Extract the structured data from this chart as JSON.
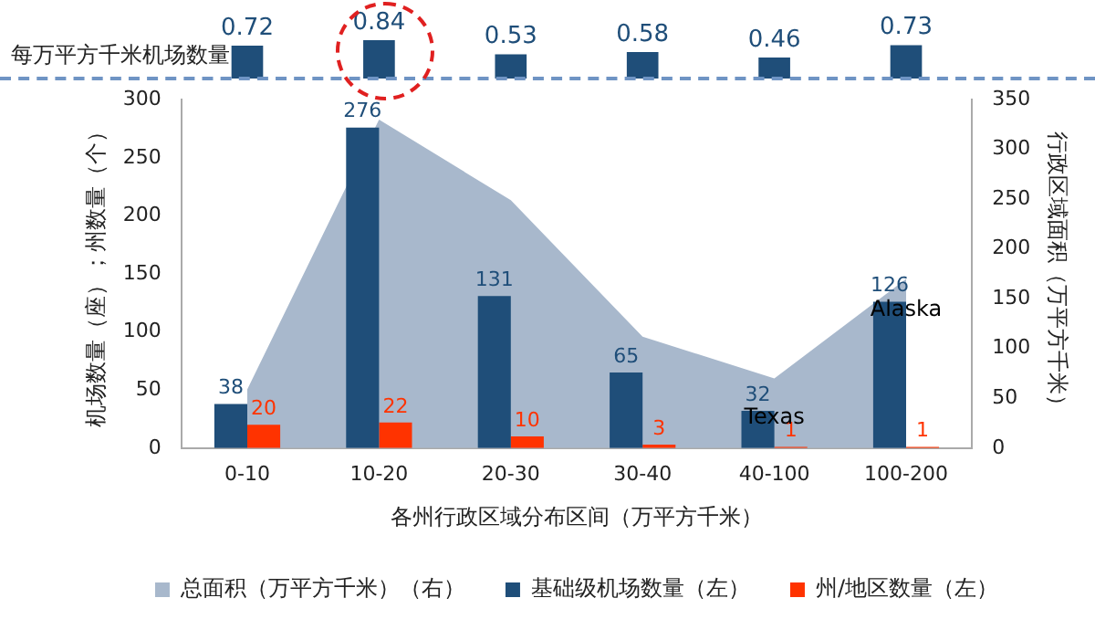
{
  "chart_data": [
    {
      "type": "bar",
      "ylabel": "每万平方千米机场数量",
      "categories": [
        null,
        null,
        null,
        null,
        null,
        null
      ],
      "values": [
        0.72,
        0.84,
        0.53,
        0.58,
        0.46,
        0.73
      ],
      "color": "#1f4e79",
      "data_labels": true,
      "tick_labels": false
    },
    {
      "type": "bar",
      "categories": [
        "0-10",
        "10-20",
        "20-30",
        "30-40",
        "40-100",
        "100-200"
      ],
      "xlabel": "各州行政区域分布区间（万平方千米）",
      "ylabel": "机场数量（座）；州数量（个）",
      "y2label": "行政区域面积（万平方千米）",
      "series": [
        {
          "name": "总面积（万平方千米）（右）",
          "type": "area",
          "axis": "y2",
          "color": "#a8b8cc",
          "values": [
            59,
            330,
            249,
            112,
            70,
            170
          ]
        },
        {
          "name": "基础级机场数量（左）",
          "type": "bar",
          "color": "#1f4e79",
          "values": [
            38,
            276,
            131,
            65,
            32,
            126
          ],
          "value_labels": [
            "38",
            "276",
            "131",
            "65",
            "32",
            "126"
          ]
        },
        {
          "name": "州/地区数量（左）",
          "type": "bar",
          "color": "#ff3300",
          "values": [
            20,
            22,
            10,
            3,
            1,
            1
          ],
          "value_labels": [
            "20",
            "22",
            "10",
            "3",
            "1",
            "1"
          ]
        }
      ],
      "ylim": [
        0,
        300
      ],
      "yticks": [
        0,
        50,
        100,
        150,
        200,
        250,
        300
      ],
      "y2lim": [
        0,
        350
      ],
      "y2ticks": [
        0,
        50,
        100,
        150,
        200,
        250,
        300,
        350
      ],
      "annotations": [
        {
          "text": "Alaska",
          "x": "100-200",
          "y": 119
        },
        {
          "text": "Texas",
          "x": "40-100",
          "y": 26
        }
      ],
      "legend": "bottom",
      "grid": false
    }
  ]
}
